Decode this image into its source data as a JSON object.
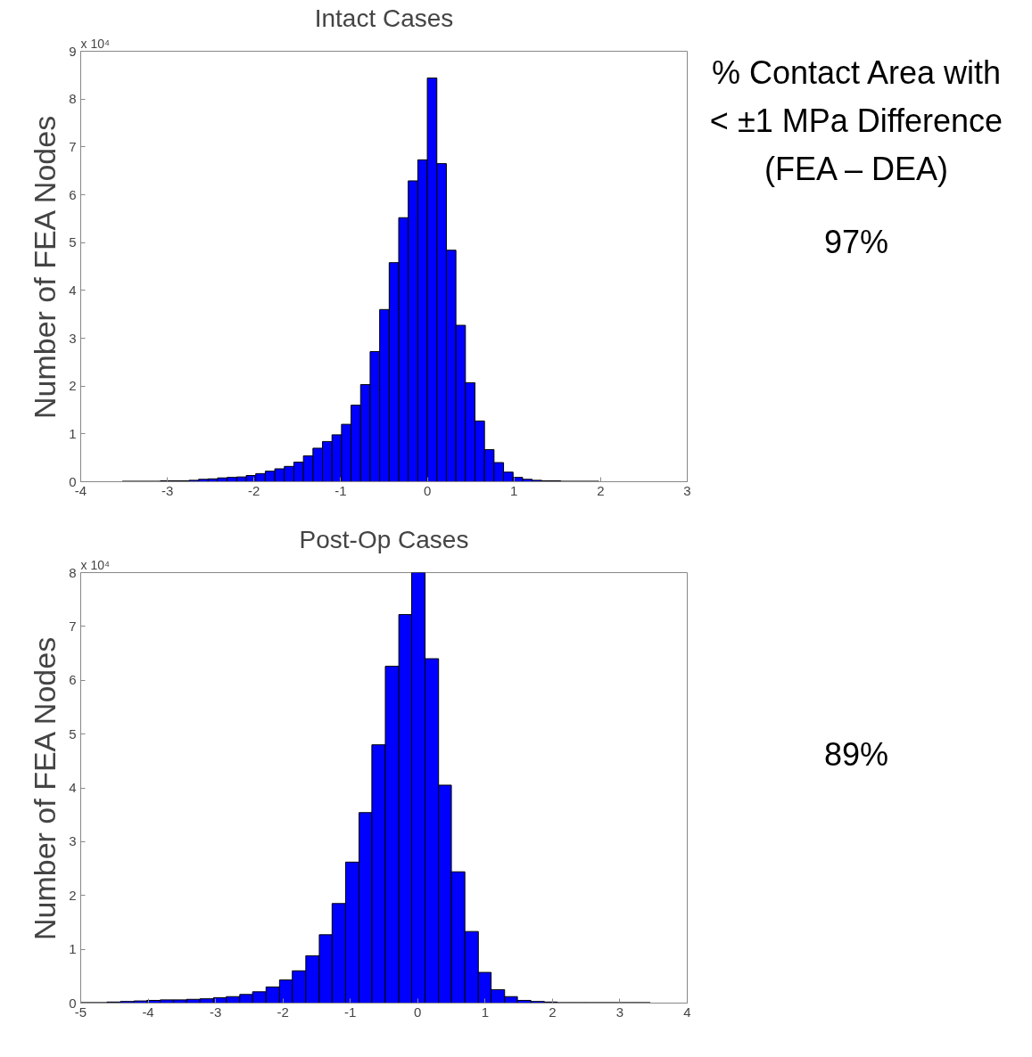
{
  "chart_data": [
    {
      "type": "histogram",
      "title": "Intact Cases",
      "ylabel": "Number of FEA Nodes",
      "color": "#0000ff",
      "bins": [
        -3.52,
        -3.41,
        -3.3,
        -3.19,
        -3.08,
        -2.97,
        -2.86,
        -2.75,
        -2.64,
        -2.53,
        -2.42,
        -2.31,
        -2.2,
        -2.09,
        -1.98,
        -1.87,
        -1.76,
        -1.65,
        -1.54,
        -1.43,
        -1.32,
        -1.21,
        -1.1,
        -0.99,
        -0.88,
        -0.77,
        -0.66,
        -0.55,
        -0.44,
        -0.33,
        -0.22,
        -0.11,
        0,
        0.11,
        0.22,
        0.33,
        0.44,
        0.55,
        0.66,
        0.77,
        0.88,
        0.99,
        1.1,
        1.21,
        1.32,
        1.43,
        1.54,
        1.65,
        1.76,
        1.87,
        1.98
      ],
      "values": [
        0.01,
        0.01,
        0.01,
        0.01,
        0.02,
        0.02,
        0.02,
        0.03,
        0.05,
        0.06,
        0.08,
        0.09,
        0.1,
        0.13,
        0.17,
        0.22,
        0.27,
        0.32,
        0.41,
        0.54,
        0.7,
        0.84,
        0.98,
        1.2,
        1.6,
        2.03,
        2.72,
        3.6,
        4.58,
        5.52,
        6.29,
        6.73,
        8.44,
        6.65,
        4.84,
        3.27,
        2.07,
        1.27,
        0.67,
        0.4,
        0.2,
        0.09,
        0.05,
        0.03,
        0.02,
        0.02,
        0.01,
        0.01,
        0.01,
        0.01
      ],
      "xlim": [
        -4,
        3
      ],
      "xticks": [
        -4,
        -3,
        -2,
        -1,
        0,
        1,
        2,
        3
      ],
      "ylim": [
        0,
        9
      ],
      "yticks": [
        0,
        1,
        2,
        3,
        4,
        5,
        6,
        7,
        8,
        9
      ],
      "annotations": [
        "x 10⁴",
        "% Contact Area with < ±1 MPa Difference (FEA – DEA)",
        "97%"
      ]
    },
    {
      "type": "histogram",
      "title": "Post-Op Cases",
      "ylabel": "Number of FEA Nodes",
      "color": "#0000ff",
      "bins": [
        -5.0,
        -4.8,
        -4.61,
        -4.41,
        -4.21,
        -4.02,
        -3.82,
        -3.62,
        -3.43,
        -3.23,
        -3.03,
        -2.84,
        -2.64,
        -2.45,
        -2.25,
        -2.05,
        -1.86,
        -1.66,
        -1.46,
        -1.27,
        -1.07,
        -0.87,
        -0.68,
        -0.48,
        -0.28,
        -0.09,
        0.11,
        0.31,
        0.5,
        0.7,
        0.9,
        1.09,
        1.29,
        1.48,
        1.68,
        1.88,
        2.07,
        2.27,
        2.47,
        2.66,
        2.86,
        3.06,
        3.25,
        3.45
      ],
      "values": [
        0.01,
        0.01,
        0.02,
        0.03,
        0.04,
        0.05,
        0.06,
        0.06,
        0.07,
        0.08,
        0.1,
        0.12,
        0.16,
        0.21,
        0.3,
        0.43,
        0.6,
        0.88,
        1.27,
        1.85,
        2.62,
        3.54,
        4.8,
        6.26,
        7.22,
        8.0,
        6.4,
        4.05,
        2.44,
        1.33,
        0.57,
        0.25,
        0.12,
        0.05,
        0.03,
        0.02,
        0.01,
        0.01,
        0.01,
        0.01,
        0.01,
        0.01,
        0.01
      ],
      "xlim": [
        -5,
        4
      ],
      "xticks": [
        -5,
        -4,
        -3,
        -2,
        -1,
        0,
        1,
        2,
        3,
        4
      ],
      "ylim": [
        0,
        8
      ],
      "yticks": [
        0,
        1,
        2,
        3,
        4,
        5,
        6,
        7,
        8
      ],
      "annotations": [
        "x 10⁴",
        "89%"
      ]
    }
  ]
}
